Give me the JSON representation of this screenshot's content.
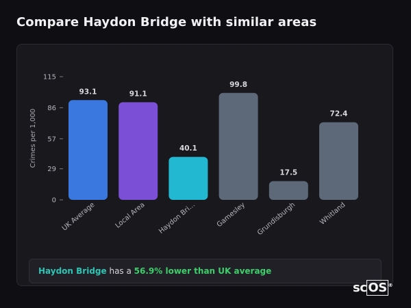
{
  "page": {
    "title": "Compare Haydon Bridge with similar areas"
  },
  "chart_data": {
    "type": "bar",
    "ylabel": "Crimes per 1,000",
    "xlabel": "",
    "ylim": [
      0,
      115
    ],
    "yticks": [
      0,
      29,
      57,
      86,
      115
    ],
    "categories": [
      "UK Average",
      "Local Area",
      "Haydon Bri...",
      "Gamesley",
      "Grundisburgh",
      "Whitland"
    ],
    "values": [
      93.1,
      91.1,
      40.1,
      99.8,
      17.5,
      72.4
    ],
    "value_labels": [
      "93.1",
      "91.1",
      "40.1",
      "99.8",
      "17.5",
      "72.4"
    ],
    "colors": [
      "#3a78e0",
      "#7b4fd6",
      "#22b8d1",
      "#5d6878",
      "#5d6878",
      "#5d6878"
    ],
    "grid": false,
    "legend": "none"
  },
  "callout": {
    "area": "Haydon Bridge",
    "mid": " has a ",
    "delta": "56.9% lower than UK average"
  },
  "logo": {
    "prefix": "sc",
    "boxed": "OS",
    "mark": "®"
  }
}
